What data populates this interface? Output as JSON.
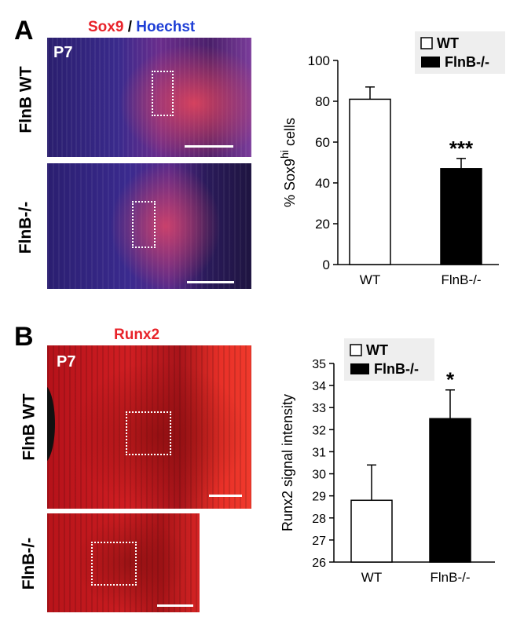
{
  "panel_a": {
    "letter": "A",
    "stain_red": "Sox9",
    "stain_sep": " / ",
    "stain_blue": "Hoechst",
    "timepoint": "P7",
    "label_wt": "FlnB WT",
    "label_ko": "FlnB-/-"
  },
  "panel_b": {
    "letter": "B",
    "stain": "Runx2",
    "timepoint": "P7",
    "label_wt": "FlnB WT",
    "label_ko": "FlnB-/-"
  },
  "colors": {
    "sox9": "#e8232a",
    "hoechst": "#1f3fd6",
    "runx2": "#e8232a",
    "bar_wt": "#ffffff",
    "bar_ko": "#000000"
  },
  "chart_data": [
    {
      "type": "bar",
      "categories": [
        "WT",
        "FlnB-/-"
      ],
      "values": [
        81,
        47
      ],
      "errors": [
        6,
        5
      ],
      "ylabel_prefix": "% Sox9",
      "ylabel_sup": "hi",
      "ylabel_suffix": " cells",
      "ylim": [
        0,
        100
      ],
      "yticks": [
        "0",
        "20",
        "40",
        "60",
        "80",
        "100"
      ],
      "legend": [
        "WT",
        "FlnB-/-"
      ],
      "annotations": [
        "",
        "***"
      ]
    },
    {
      "type": "bar",
      "categories": [
        "WT",
        "FlnB-/-"
      ],
      "values": [
        28.8,
        32.5
      ],
      "errors": [
        1.6,
        1.3
      ],
      "ylabel": "Runx2 signal intensity",
      "ylim": [
        26,
        35
      ],
      "yticks": [
        "26",
        "27",
        "28",
        "29",
        "30",
        "31",
        "32",
        "33",
        "34",
        "35"
      ],
      "legend": [
        "WT",
        "FlnB-/-"
      ],
      "annotations": [
        "",
        "*"
      ]
    }
  ]
}
